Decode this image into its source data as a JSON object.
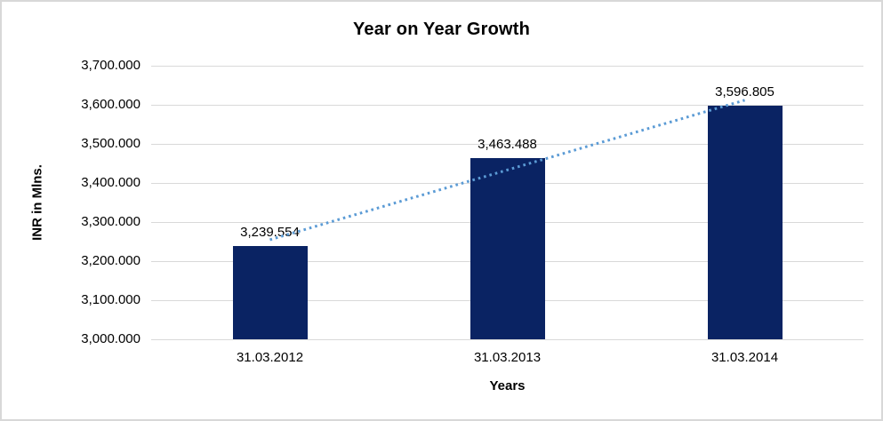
{
  "chart_data": {
    "type": "bar",
    "title": "Year on Year Growth",
    "xlabel": "Years",
    "ylabel": "INR in Mlns.",
    "categories": [
      "31.03.2012",
      "31.03.2013",
      "31.03.2014"
    ],
    "values": [
      3239.554,
      3463.488,
      3596.805
    ],
    "value_labels": [
      "3,239.554",
      "3,463.488",
      "3,596.805"
    ],
    "ylim": [
      3000,
      3700
    ],
    "ytick_step": 100,
    "ytick_labels": [
      "3,000.000",
      "3,100.000",
      "3,200.000",
      "3,300.000",
      "3,400.000",
      "3,500.000",
      "3,600.000",
      "3,700.000"
    ],
    "grid": true,
    "legend": false,
    "trendline": {
      "type": "linear",
      "style": "dotted"
    }
  },
  "colors": {
    "bar": "#0a2363",
    "gridline": "#d9d9d9",
    "axis_line": "#c6c6c6",
    "trendline": "#5b9bd5",
    "text": "#000000",
    "frame_border": "#d8d8d8"
  }
}
